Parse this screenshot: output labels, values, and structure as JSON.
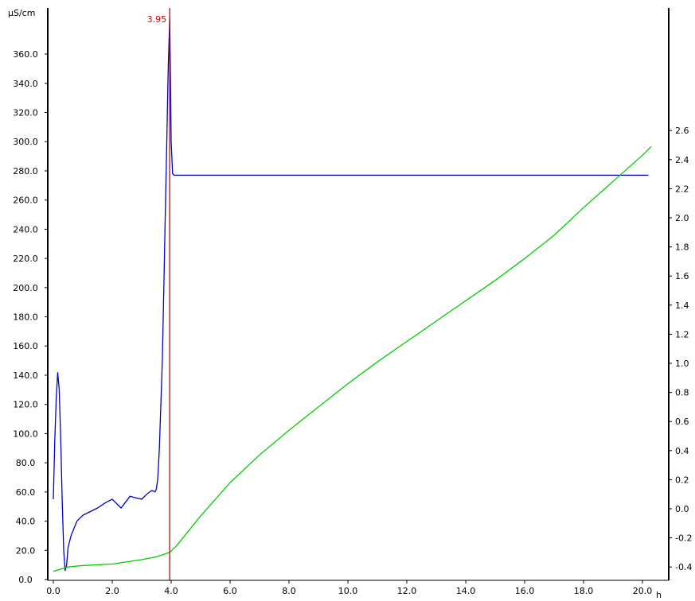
{
  "chart_data": {
    "type": "line",
    "x_unit": "h",
    "y_left_unit": "µS/cm",
    "x_ticks": [
      "0.0",
      "2.0",
      "4.0",
      "6.0",
      "8.0",
      "10.0",
      "12.0",
      "14.0",
      "16.0",
      "18.0",
      "20.0"
    ],
    "y_left_ticks": [
      "0.0",
      "20.0",
      "40.0",
      "60.0",
      "80.0",
      "100.0",
      "120.0",
      "140.0",
      "160.0",
      "180.0",
      "200.0",
      "220.0",
      "240.0",
      "260.0",
      "280.0",
      "300.0",
      "320.0",
      "340.0",
      "360.0"
    ],
    "y_right_ticks": [
      "-0.4",
      "-0.2",
      "0.0",
      "0.2",
      "0.4",
      "0.6",
      "0.8",
      "1.0",
      "1.2",
      "1.4",
      "1.6",
      "1.8",
      "2.0",
      "2.2",
      "2.4",
      "2.6"
    ],
    "xlim": [
      0,
      21
    ],
    "ylim_left": [
      0,
      375
    ],
    "ylim_right": [
      -0.43,
      2.84
    ],
    "marker": {
      "x": 3.95,
      "label": "3.95",
      "color": "#cc0000"
    },
    "series": [
      {
        "axis": "left",
        "color": "#0000cc",
        "points": [
          [
            0,
            55
          ],
          [
            0.05,
            95
          ],
          [
            0.1,
            125
          ],
          [
            0.15,
            142
          ],
          [
            0.2,
            130
          ],
          [
            0.25,
            95
          ],
          [
            0.3,
            55
          ],
          [
            0.35,
            20
          ],
          [
            0.4,
            6
          ],
          [
            0.45,
            10
          ],
          [
            0.5,
            22
          ],
          [
            0.6,
            30
          ],
          [
            0.7,
            35
          ],
          [
            0.8,
            40
          ],
          [
            1.0,
            44
          ],
          [
            1.2,
            46
          ],
          [
            1.5,
            49
          ],
          [
            1.8,
            53
          ],
          [
            2.0,
            55
          ],
          [
            2.2,
            51
          ],
          [
            2.3,
            49
          ],
          [
            2.45,
            53
          ],
          [
            2.6,
            57
          ],
          [
            2.8,
            56
          ],
          [
            3.0,
            55
          ],
          [
            3.2,
            59
          ],
          [
            3.35,
            61
          ],
          [
            3.45,
            60
          ],
          [
            3.5,
            62
          ],
          [
            3.55,
            70
          ],
          [
            3.6,
            90
          ],
          [
            3.7,
            150
          ],
          [
            3.75,
            200
          ],
          [
            3.8,
            250
          ],
          [
            3.85,
            300
          ],
          [
            3.9,
            350
          ],
          [
            3.95,
            385
          ],
          [
            4.0,
            300
          ],
          [
            4.05,
            278
          ],
          [
            4.1,
            277
          ],
          [
            20.2,
            277
          ]
        ]
      },
      {
        "axis": "right",
        "color": "#00cc00",
        "points": [
          [
            0,
            -0.43
          ],
          [
            0.5,
            -0.4
          ],
          [
            1.0,
            -0.39
          ],
          [
            2.0,
            -0.38
          ],
          [
            3.0,
            -0.35
          ],
          [
            3.5,
            -0.33
          ],
          [
            3.95,
            -0.3
          ],
          [
            4.2,
            -0.25
          ],
          [
            5.0,
            -0.05
          ],
          [
            6.0,
            0.18
          ],
          [
            7.0,
            0.37
          ],
          [
            8.0,
            0.54
          ],
          [
            9.0,
            0.7
          ],
          [
            10.0,
            0.86
          ],
          [
            11.0,
            1.01
          ],
          [
            12.0,
            1.15
          ],
          [
            13.0,
            1.29
          ],
          [
            14.0,
            1.43
          ],
          [
            15.0,
            1.57
          ],
          [
            16.0,
            1.72
          ],
          [
            17.0,
            1.88
          ],
          [
            18.0,
            2.07
          ],
          [
            19.0,
            2.25
          ],
          [
            20.0,
            2.43
          ],
          [
            20.3,
            2.49
          ]
        ]
      }
    ]
  }
}
